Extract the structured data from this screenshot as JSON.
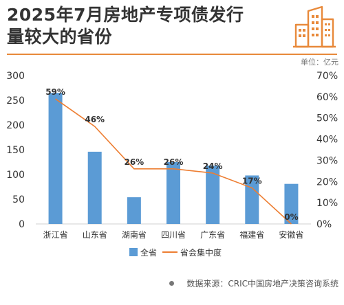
{
  "header": {
    "title_line_1": "2025年7月房地产专项债发行",
    "title_line_2": "量较大的省份",
    "unit": "单位：亿元"
  },
  "source_text": "数据来源：CRIC中国房地产决策咨询系统",
  "logo": {
    "icon": "buildings-icon",
    "color": "#e8893a"
  },
  "colors": {
    "bar": "#5b9bd5",
    "line": "#ed7d31",
    "accent": "#e8893a"
  },
  "chart_data": {
    "type": "bar",
    "categories": [
      "浙江省",
      "山东省",
      "湖南省",
      "四川省",
      "广东省",
      "福建省",
      "安徽省"
    ],
    "series": [
      {
        "name": "全省",
        "type": "bar",
        "axis": "left",
        "values": [
          265,
          146,
          54,
          125,
          118,
          98,
          81
        ]
      },
      {
        "name": "省会集中度",
        "type": "line",
        "axis": "right",
        "values": [
          59,
          46,
          26,
          26,
          24,
          17,
          0
        ]
      }
    ],
    "data_labels": [
      "59%",
      "46%",
      "26%",
      "26%",
      "24%",
      "17%",
      "0%"
    ],
    "y_left": {
      "ylim": [
        0,
        300
      ],
      "ticks": [
        0,
        50,
        100,
        150,
        200,
        250,
        300
      ]
    },
    "y_right": {
      "ylim": [
        0,
        70
      ],
      "ticks": [
        0,
        10,
        20,
        30,
        40,
        50,
        60,
        70
      ],
      "tick_labels": [
        "0%",
        "10%",
        "20%",
        "30%",
        "40%",
        "50%",
        "60%",
        "70%"
      ]
    },
    "grid": false,
    "legend_position": "bottom"
  }
}
